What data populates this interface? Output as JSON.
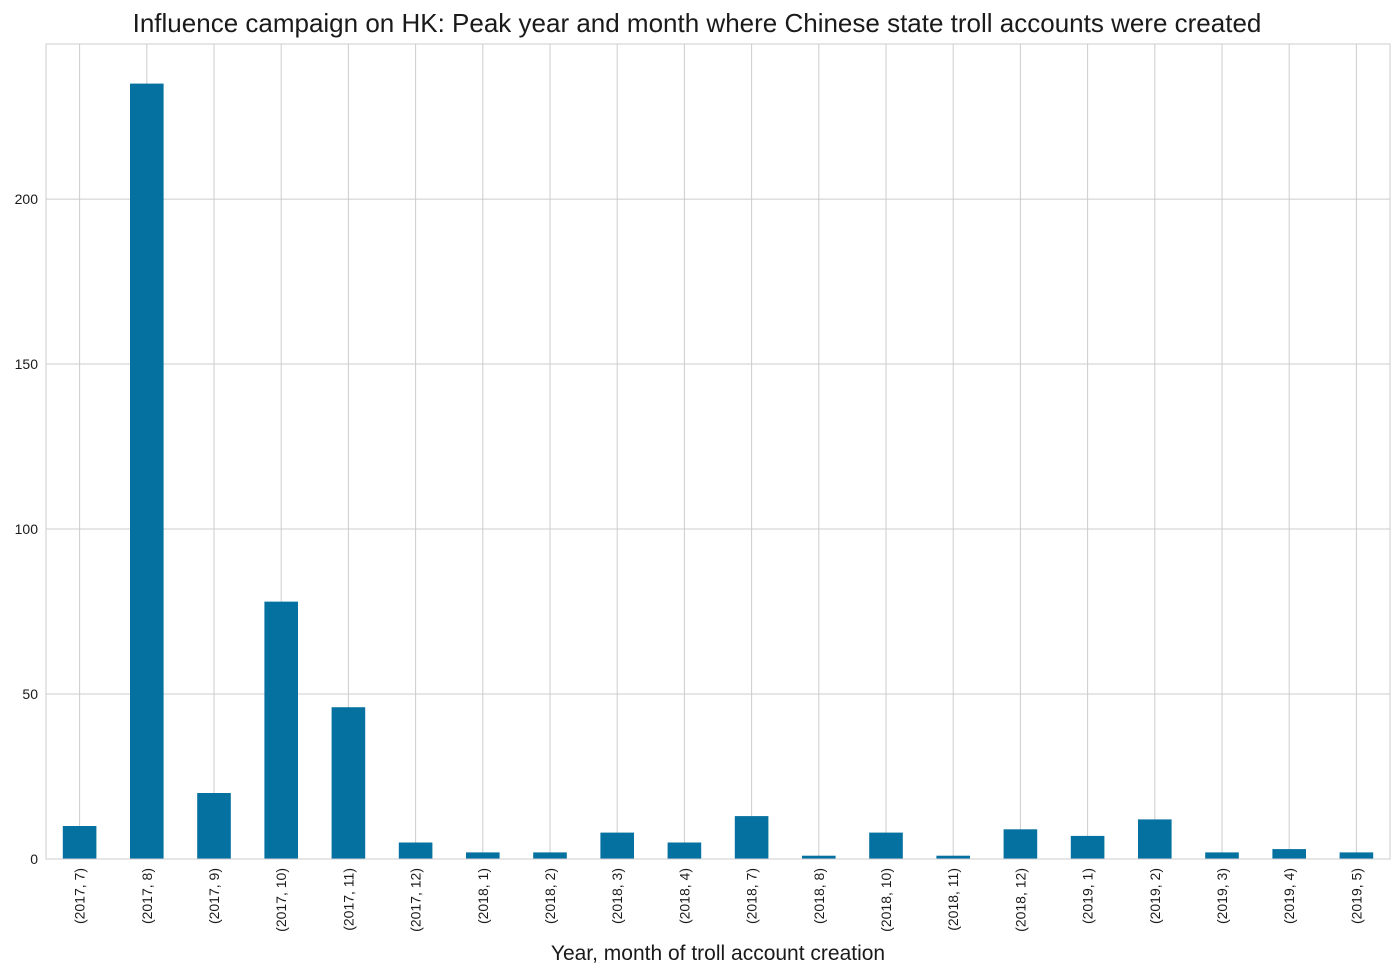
{
  "chart_data": {
    "type": "bar",
    "title": "Influence campaign on HK: Peak year and month where Chinese state troll accounts were created",
    "xlabel": "Year, month of troll account creation",
    "ylabel": "",
    "categories": [
      "(2017, 7)",
      "(2017, 8)",
      "(2017, 9)",
      "(2017, 10)",
      "(2017, 11)",
      "(2017, 12)",
      "(2018, 1)",
      "(2018, 2)",
      "(2018, 3)",
      "(2018, 4)",
      "(2018, 7)",
      "(2018, 8)",
      "(2018, 10)",
      "(2018, 11)",
      "(2018, 12)",
      "(2019, 1)",
      "(2019, 2)",
      "(2019, 3)",
      "(2019, 4)",
      "(2019, 5)"
    ],
    "values": [
      10,
      235,
      20,
      78,
      46,
      5,
      2,
      2,
      8,
      5,
      13,
      1,
      8,
      1,
      9,
      7,
      12,
      2,
      3,
      2
    ],
    "ylim": [
      0,
      247
    ],
    "yticks": [
      0,
      50,
      100,
      150,
      200
    ],
    "grid": true,
    "bar_color": "#0571a0",
    "grid_color": "#cccccc"
  }
}
